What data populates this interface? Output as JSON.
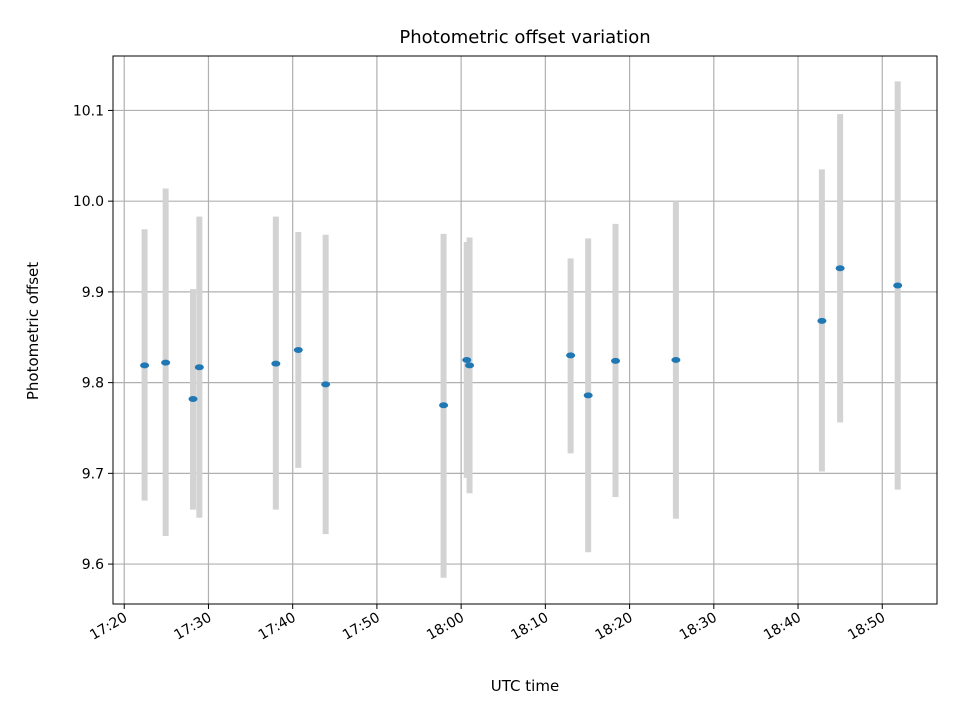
{
  "chart_data": {
    "type": "scatter",
    "title": "Photometric offset variation",
    "xlabel": "UTC time",
    "ylabel": "Photometric offset",
    "x_ticks": [
      "17:20",
      "17:30",
      "17:40",
      "17:50",
      "18:00",
      "18:10",
      "18:20",
      "18:30",
      "18:40",
      "18:50"
    ],
    "y_ticks": [
      "9.6",
      "9.7",
      "9.8",
      "9.9",
      "10.0",
      "10.1"
    ],
    "xlim": [
      "17:18:40",
      "18:56:30"
    ],
    "ylim": [
      9.556,
      10.16
    ],
    "grid": true,
    "colors": {
      "point": "#1f77b4",
      "errorbar": "#d3d3d3",
      "grid": "#b0b0b0"
    },
    "points": [
      {
        "x": "17:22:25",
        "y": 9.819,
        "y_low": 9.67,
        "y_high": 9.969
      },
      {
        "x": "17:24:55",
        "y": 9.822,
        "y_low": 9.631,
        "y_high": 10.014
      },
      {
        "x": "17:28:10",
        "y": 9.782,
        "y_low": 9.66,
        "y_high": 9.903
      },
      {
        "x": "17:28:55",
        "y": 9.817,
        "y_low": 9.651,
        "y_high": 9.983
      },
      {
        "x": "17:38:00",
        "y": 9.821,
        "y_low": 9.66,
        "y_high": 9.983
      },
      {
        "x": "17:40:40",
        "y": 9.836,
        "y_low": 9.706,
        "y_high": 9.966
      },
      {
        "x": "17:43:55",
        "y": 9.798,
        "y_low": 9.633,
        "y_high": 9.963
      },
      {
        "x": "17:57:55",
        "y": 9.775,
        "y_low": 9.585,
        "y_high": 9.964
      },
      {
        "x": "18:00:40",
        "y": 9.825,
        "y_low": 9.695,
        "y_high": 9.955
      },
      {
        "x": "18:01:00",
        "y": 9.819,
        "y_low": 9.678,
        "y_high": 9.96
      },
      {
        "x": "18:13:00",
        "y": 9.83,
        "y_low": 9.722,
        "y_high": 9.937
      },
      {
        "x": "18:15:05",
        "y": 9.786,
        "y_low": 9.613,
        "y_high": 9.959
      },
      {
        "x": "18:18:20",
        "y": 9.824,
        "y_low": 9.674,
        "y_high": 9.975
      },
      {
        "x": "18:25:30",
        "y": 9.825,
        "y_low": 9.65,
        "y_high": 10.0
      },
      {
        "x": "18:42:50",
        "y": 9.868,
        "y_low": 9.702,
        "y_high": 10.035
      },
      {
        "x": "18:45:00",
        "y": 9.926,
        "y_low": 9.756,
        "y_high": 10.096
      },
      {
        "x": "18:51:50",
        "y": 9.907,
        "y_low": 9.682,
        "y_high": 10.132
      }
    ]
  }
}
